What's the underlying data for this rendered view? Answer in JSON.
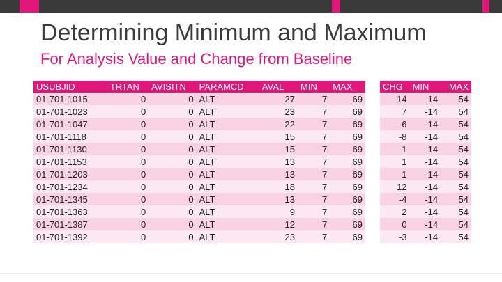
{
  "slide": {
    "title": "Determining Minimum and Maximum",
    "subtitle": "For Analysis Value and Change from Baseline"
  },
  "table1": {
    "headers": [
      "USUBJID",
      "TRTAN",
      "AVISITN",
      "PARAMCD",
      "AVAL",
      "MIN",
      "MAX"
    ],
    "rows": [
      [
        "01-701-1015",
        "0",
        "0",
        "ALT",
        "27",
        "7",
        "69"
      ],
      [
        "01-701-1023",
        "0",
        "0",
        "ALT",
        "23",
        "7",
        "69"
      ],
      [
        "01-701-1047",
        "0",
        "0",
        "ALT",
        "22",
        "7",
        "69"
      ],
      [
        "01-701-1118",
        "0",
        "0",
        "ALT",
        "15",
        "7",
        "69"
      ],
      [
        "01-701-1130",
        "0",
        "0",
        "ALT",
        "15",
        "7",
        "69"
      ],
      [
        "01-701-1153",
        "0",
        "0",
        "ALT",
        "13",
        "7",
        "69"
      ],
      [
        "01-701-1203",
        "0",
        "0",
        "ALT",
        "13",
        "7",
        "69"
      ],
      [
        "01-701-1234",
        "0",
        "0",
        "ALT",
        "18",
        "7",
        "69"
      ],
      [
        "01-701-1345",
        "0",
        "0",
        "ALT",
        "13",
        "7",
        "69"
      ],
      [
        "01-701-1363",
        "0",
        "0",
        "ALT",
        "9",
        "7",
        "69"
      ],
      [
        "01-701-1387",
        "0",
        "0",
        "ALT",
        "12",
        "7",
        "69"
      ],
      [
        "01-701-1392",
        "0",
        "0",
        "ALT",
        "23",
        "7",
        "69"
      ]
    ]
  },
  "table2": {
    "headers": [
      "CHG",
      "MIN",
      "MAX"
    ],
    "rows": [
      [
        "14",
        "-14",
        "54"
      ],
      [
        "7",
        "-14",
        "54"
      ],
      [
        "-6",
        "-14",
        "54"
      ],
      [
        "-8",
        "-14",
        "54"
      ],
      [
        "-1",
        "-14",
        "54"
      ],
      [
        "1",
        "-14",
        "54"
      ],
      [
        "1",
        "-14",
        "54"
      ],
      [
        "12",
        "-14",
        "54"
      ],
      [
        "-4",
        "-14",
        "54"
      ],
      [
        "2",
        "-14",
        "54"
      ],
      [
        "0",
        "-14",
        "54"
      ],
      [
        "-3",
        "-14",
        "54"
      ]
    ]
  },
  "colors": {
    "accent": "#e0187a",
    "dark_bar": "#3a3a3a",
    "row_band_1": "#f9d3e2",
    "row_band_2": "#fbe8f0"
  }
}
